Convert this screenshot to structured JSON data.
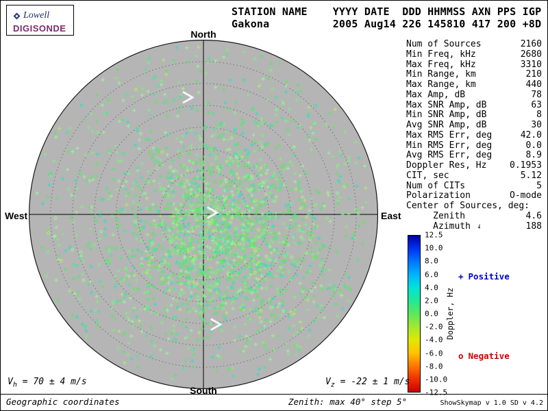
{
  "colors": {
    "positive": "#0000cc",
    "negative": "#cc0000",
    "brand": "#7b2a6e",
    "disk_gray": "#b5b5b5",
    "arrow_white": "#ffffff"
  },
  "logo": {
    "brand": "Lowell",
    "product": "DIGISONDE"
  },
  "header": {
    "line1": "STATION NAME    YYYY DATE  DDD HHMMSS AXN PPS IGP",
    "line2": "Gakona          2005 Aug14 226 145810 417 200 +8D"
  },
  "compass": {
    "north": "North",
    "south": "South",
    "west": "West",
    "east": "East"
  },
  "stats": {
    "rows": [
      {
        "label": "Num of Sources",
        "value": "2160"
      },
      {
        "label": "Min Freq, kHz",
        "value": "2680"
      },
      {
        "label": "Max Freq, kHz",
        "value": "3310"
      },
      {
        "label": "Min Range, km",
        "value": "210"
      },
      {
        "label": "Max Range, km",
        "value": "440"
      },
      {
        "label": "Max Amp, dB",
        "value": "78"
      },
      {
        "label": "Max SNR Amp, dB",
        "value": "63"
      },
      {
        "label": "Min SNR Amp, dB",
        "value": "8"
      },
      {
        "label": "Avg SNR Amp, dB",
        "value": "30"
      },
      {
        "label": "Max RMS Err, deg",
        "value": "42.0"
      },
      {
        "label": "Min RMS Err, deg",
        "value": "0.0"
      },
      {
        "label": "Avg RMS Err, deg",
        "value": "8.9"
      },
      {
        "label": "Doppler Res, Hz",
        "value": "0.1953"
      },
      {
        "label": "CIT, sec",
        "value": "5.12"
      },
      {
        "label": "Num of CITs",
        "value": "5"
      },
      {
        "label": "Polarization",
        "value": "O-mode"
      },
      {
        "label": "Center of Sources, deg:",
        "value": ""
      },
      {
        "label": "     Zenith",
        "value": "4.6"
      },
      {
        "label": "     Azimuth",
        "value": "188",
        "arrow": true
      }
    ]
  },
  "colorbar": {
    "label": "Doppler, Hz",
    "ticks": [
      "12.5",
      "10.0",
      "8.0",
      "6.0",
      "4.0",
      "2.0",
      "0.0",
      "-2.0",
      "-4.0",
      "-6.0",
      "-8.0",
      "-10.0",
      "-12.5"
    ]
  },
  "legend": {
    "positive_marker": "+",
    "positive_label": "Positive",
    "negative_marker": "o",
    "negative_label": "Negative"
  },
  "footer": {
    "vh": {
      "sym": "V",
      "sub": "h",
      "rest": " = 70 ± 4 m/s"
    },
    "vz": {
      "sym": "V",
      "sub": "z",
      "rest": " = -22 ± 1 m/s"
    },
    "coords_note": "Geographic coordinates",
    "zenith_note": "Zenith: max 40°  step 5°",
    "version": "ShowSkymap v 1.0  SD v 4.2"
  },
  "chart_data": {
    "type": "scatter",
    "projection": "polar zenith-azimuth skymap",
    "zenith_max_deg": 40,
    "zenith_step_deg": 5,
    "num_sources": 2160,
    "doppler_hz_range": [
      -12.5,
      12.5
    ],
    "doppler_res_hz": 0.1953,
    "center_of_sources": {
      "zenith_deg": 4.6,
      "azimuth_deg": 188
    },
    "velocity_horizontal_ms": {
      "value": 70,
      "error": 4
    },
    "velocity_vertical_ms": {
      "value": -22,
      "error": 1
    },
    "marker_positive": "+",
    "marker_negative": "o",
    "negative_fraction": 0.12,
    "seed": 145810,
    "point_colors": [
      "#84ea84",
      "#65e070",
      "#9df29a",
      "#4ce49c",
      "#38dcc0",
      "#58ee58",
      "#b4ec6c"
    ],
    "color_weights": [
      0.3,
      0.2,
      0.14,
      0.13,
      0.09,
      0.09,
      0.05
    ],
    "clusters": [
      {
        "cx": 0.1,
        "cy": 0.05,
        "sx": 0.3,
        "sy": 0.27,
        "count": 1080
      },
      {
        "cx": 0.06,
        "cy": 0.3,
        "sx": 0.3,
        "sy": 0.22,
        "count": 440
      },
      {
        "uniform": true,
        "count": 640
      }
    ],
    "arrows": [
      {
        "x": -0.09,
        "y": -0.67,
        "deg": 0
      },
      {
        "x": 0.05,
        "y": -0.01,
        "deg": 0
      },
      {
        "x": 0.07,
        "y": 0.63,
        "deg": 0
      }
    ],
    "colorbar_gradient": [
      "#0000aa",
      "#0033f0",
      "#0077ff",
      "#00b4ff",
      "#00e4d8",
      "#22e896",
      "#5ce85c",
      "#a2e832",
      "#e0e800",
      "#ffc400",
      "#ff7800",
      "#f03000",
      "#cc0000"
    ]
  }
}
